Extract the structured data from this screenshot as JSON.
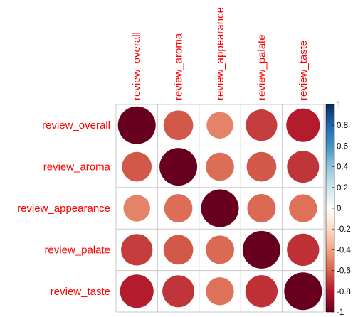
{
  "chart_data": {
    "type": "heatmap",
    "variables": [
      "review_overall",
      "review_aroma",
      "review_appearance",
      "review_palate",
      "review_taste"
    ],
    "matrix": [
      [
        1.0,
        0.62,
        0.5,
        0.7,
        0.79
      ],
      [
        0.62,
        1.0,
        0.56,
        0.62,
        0.72
      ],
      [
        0.5,
        0.56,
        1.0,
        0.57,
        0.55
      ],
      [
        0.7,
        0.62,
        0.57,
        1.0,
        0.73
      ],
      [
        0.79,
        0.72,
        0.55,
        0.73,
        1.0
      ]
    ],
    "colorbar": {
      "range": [
        -1,
        1
      ],
      "ticks": [
        "1",
        "0.8",
        "0.6",
        "0.4",
        "0.2",
        "0",
        "-0.2",
        "-0.4",
        "-0.6",
        "-0.8",
        "-1"
      ]
    },
    "label_color": "#ff0000",
    "colors": [
      "#67001f",
      "#b2182b",
      "#d6604d",
      "#f4a582",
      "#fddbc7",
      "#ffffff",
      "#d1e5f0",
      "#92c5de",
      "#4393c3",
      "#2166ac",
      "#053061"
    ]
  }
}
